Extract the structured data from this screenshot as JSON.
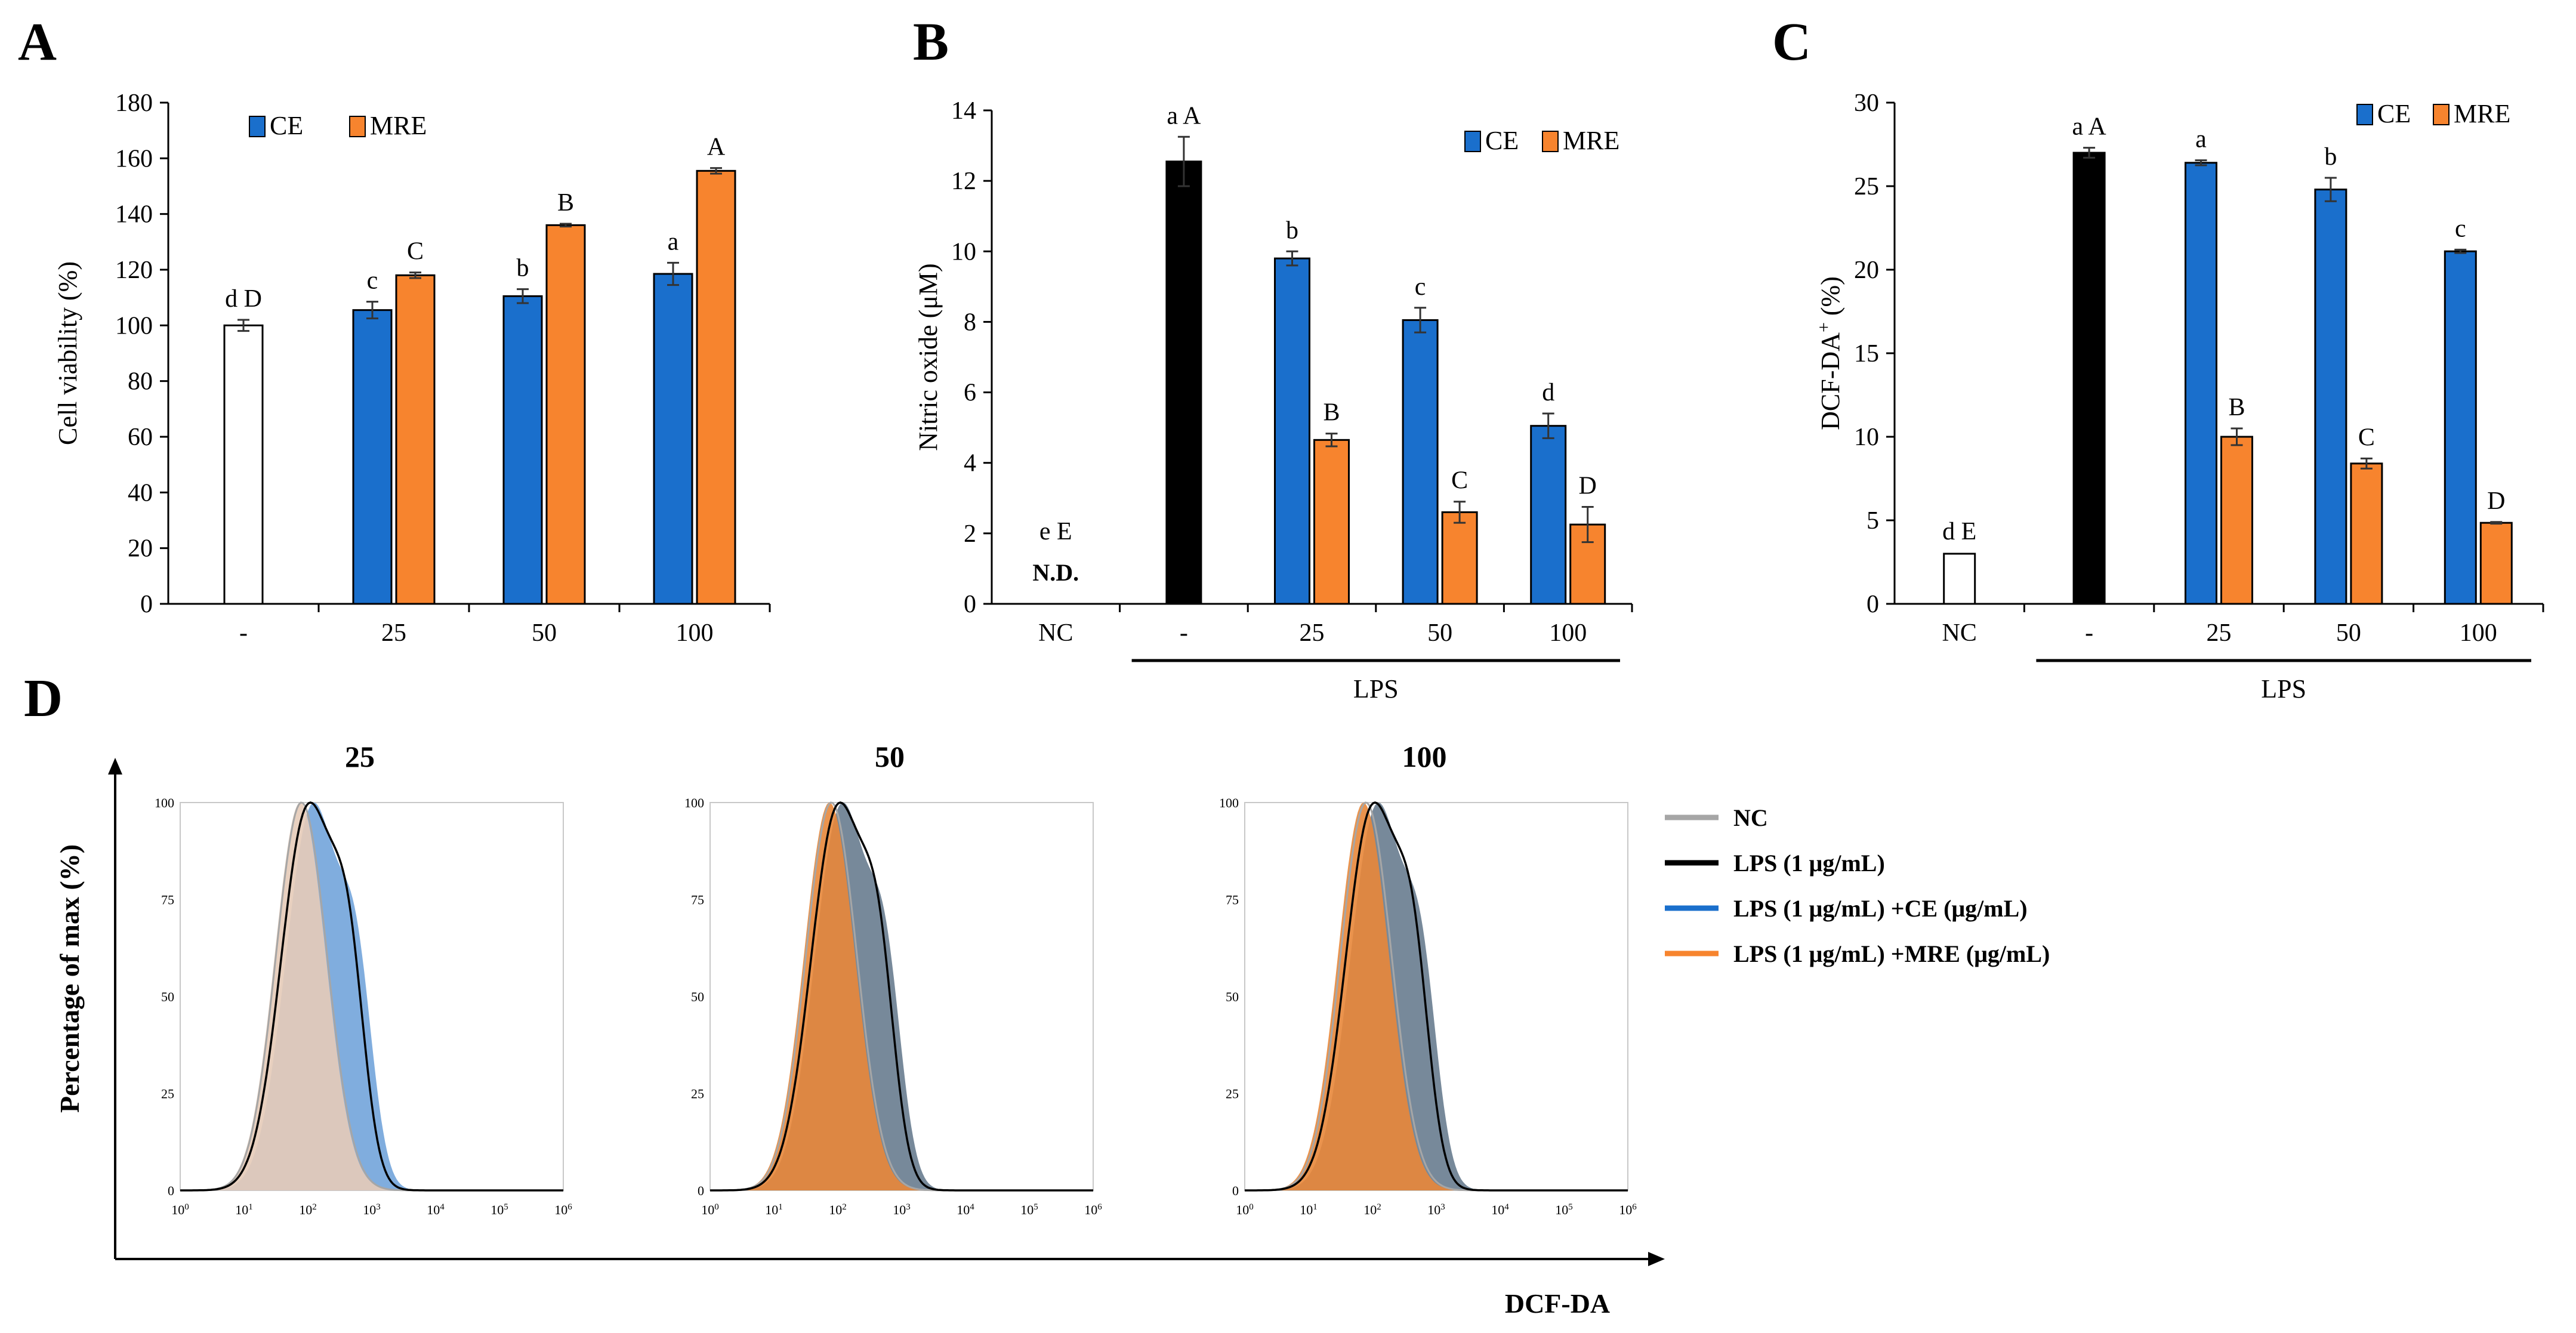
{
  "colors": {
    "ce": "#1a6fcc",
    "mre": "#f7842e",
    "black": "#000000",
    "white": "#ffffff",
    "nc": "#a6a6a6",
    "ce_fill": "#6a9fd8",
    "mre_fill": "#e8873a",
    "nc_fill": "#e6cbb8"
  },
  "chart_data": [
    {
      "panel": "A",
      "type": "bar",
      "ylabel": "Cell viability (%)",
      "ylim": [
        0,
        180
      ],
      "yticks": [
        0,
        20,
        40,
        60,
        80,
        100,
        120,
        140,
        160,
        180
      ],
      "categories": [
        "-",
        "25",
        "50",
        "100"
      ],
      "legend": [
        "CE",
        "MRE"
      ],
      "bars": [
        {
          "cat": 0,
          "series": "control",
          "value": 100,
          "err": 2,
          "label": "d D"
        },
        {
          "cat": 1,
          "series": "CE",
          "value": 105.5,
          "err": 3,
          "label": "c"
        },
        {
          "cat": 1,
          "series": "MRE",
          "value": 118,
          "err": 1,
          "label": "C"
        },
        {
          "cat": 2,
          "series": "CE",
          "value": 110.5,
          "err": 2.5,
          "label": "b"
        },
        {
          "cat": 2,
          "series": "MRE",
          "value": 136,
          "err": 0.5,
          "label": "B"
        },
        {
          "cat": 3,
          "series": "CE",
          "value": 118.5,
          "err": 4,
          "label": "a"
        },
        {
          "cat": 3,
          "series": "MRE",
          "value": 155.5,
          "err": 1,
          "label": "A"
        }
      ]
    },
    {
      "panel": "B",
      "type": "bar",
      "ylabel": "Nitric oxide (μM)",
      "ylim": [
        0,
        14
      ],
      "yticks": [
        0,
        2,
        4,
        6,
        8,
        10,
        12,
        14
      ],
      "categories": [
        "NC",
        "-",
        "25",
        "50",
        "100"
      ],
      "group_label": "LPS",
      "legend": [
        "CE",
        "MRE"
      ],
      "nd_label": "N.D.",
      "bars": [
        {
          "cat": 0,
          "series": "none",
          "value": 0,
          "err": 0,
          "label": "e E"
        },
        {
          "cat": 1,
          "series": "LPS",
          "value": 12.55,
          "err": 0.7,
          "label": "a A"
        },
        {
          "cat": 2,
          "series": "CE",
          "value": 9.8,
          "err": 0.2,
          "label": "b"
        },
        {
          "cat": 2,
          "series": "MRE",
          "value": 4.65,
          "err": 0.18,
          "label": "B"
        },
        {
          "cat": 3,
          "series": "CE",
          "value": 8.05,
          "err": 0.35,
          "label": "c"
        },
        {
          "cat": 3,
          "series": "MRE",
          "value": 2.6,
          "err": 0.3,
          "label": "C"
        },
        {
          "cat": 4,
          "series": "CE",
          "value": 5.05,
          "err": 0.35,
          "label": "d"
        },
        {
          "cat": 4,
          "series": "MRE",
          "value": 2.25,
          "err": 0.5,
          "label": "D"
        }
      ]
    },
    {
      "panel": "C",
      "type": "bar",
      "ylabel_main": "DCF-DA",
      "ylabel_sup": "+",
      "ylabel_tail": " (%)",
      "ylim": [
        0,
        30
      ],
      "yticks": [
        0,
        5,
        10,
        15,
        20,
        25,
        30
      ],
      "categories": [
        "NC",
        "-",
        "25",
        "50",
        "100"
      ],
      "group_label": "LPS",
      "legend": [
        "CE",
        "MRE"
      ],
      "bars": [
        {
          "cat": 0,
          "series": "control",
          "value": 3,
          "err": 0,
          "label": "d E"
        },
        {
          "cat": 1,
          "series": "LPS",
          "value": 27,
          "err": 0.3,
          "label": "a A"
        },
        {
          "cat": 2,
          "series": "CE",
          "value": 26.4,
          "err": 0.15,
          "label": "a"
        },
        {
          "cat": 2,
          "series": "MRE",
          "value": 10,
          "err": 0.5,
          "label": "B"
        },
        {
          "cat": 3,
          "series": "CE",
          "value": 24.8,
          "err": 0.7,
          "label": "b"
        },
        {
          "cat": 3,
          "series": "MRE",
          "value": 8.4,
          "err": 0.3,
          "label": "C"
        },
        {
          "cat": 4,
          "series": "CE",
          "value": 21.1,
          "err": 0.1,
          "label": "c"
        },
        {
          "cat": 4,
          "series": "MRE",
          "value": 4.85,
          "err": 0.05,
          "label": "D"
        }
      ]
    },
    {
      "panel": "D",
      "type": "area",
      "ylabel": "Percentage of max (%)",
      "xlabel": "DCF-DA",
      "yticks": [
        "0",
        "25",
        "50",
        "75",
        "100"
      ],
      "xticks_log": [
        0,
        1,
        2,
        3,
        4,
        5,
        6
      ],
      "subplots": [
        {
          "title": "25",
          "ce_shift": 0.25,
          "mre_shift": -0.1
        },
        {
          "title": "50",
          "ce_shift": 0.2,
          "mre_shift": -0.15
        },
        {
          "title": "100",
          "ce_shift": 0.25,
          "mre_shift": -0.2
        }
      ],
      "legend": [
        {
          "label": "NC",
          "color": "#a6a6a6"
        },
        {
          "label": "LPS (1 μg/mL)",
          "color": "#000000"
        },
        {
          "label": "LPS (1 μg/mL) +CE (μg/mL)",
          "color": "#1a6fcc"
        },
        {
          "label": "LPS (1 μg/mL) +MRE (μg/mL)",
          "color": "#f7842e"
        }
      ]
    }
  ],
  "panel_letters": [
    "A",
    "B",
    "C",
    "D"
  ]
}
